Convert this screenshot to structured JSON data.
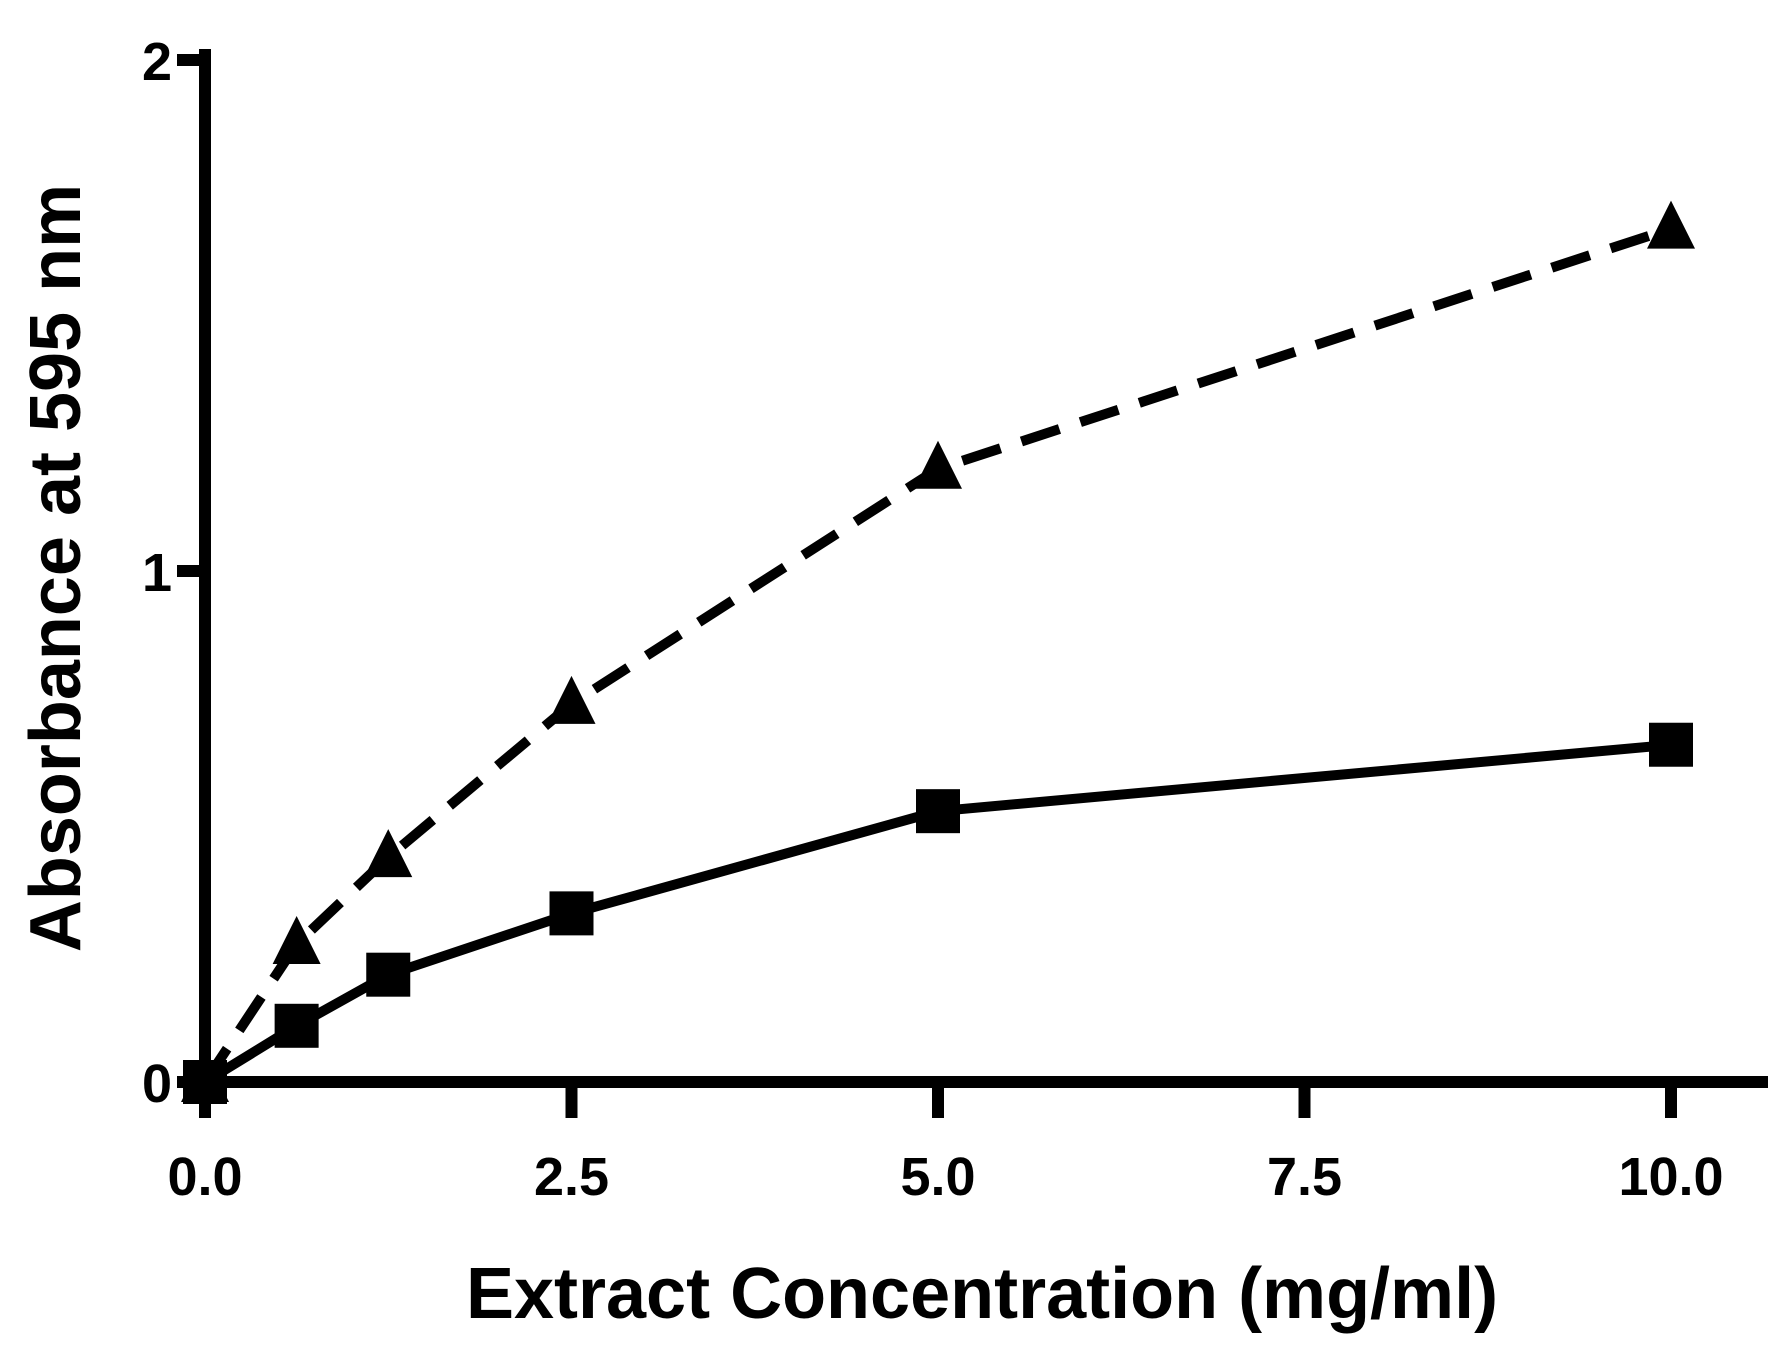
{
  "chart_data": {
    "type": "line",
    "title": "",
    "xlabel": "Extract Concentration (mg/ml)",
    "ylabel": "Absorbance at 595 nm",
    "xlim": [
      0,
      10.5
    ],
    "ylim": [
      0,
      2
    ],
    "x_ticks": [
      0,
      2.5,
      5,
      7.5,
      10
    ],
    "x_tick_labels": [
      "0.0",
      "2.5",
      "5.0",
      "7.5",
      "10.0"
    ],
    "y_ticks": [
      0,
      1,
      2
    ],
    "y_tick_labels": [
      "0",
      "1",
      "2"
    ],
    "grid": false,
    "legend": "none",
    "series": [
      {
        "marker": "triangle",
        "line_style": "dashed",
        "color": "#000000",
        "x": [
          0.0,
          0.625,
          1.25,
          2.5,
          5.0,
          10.0
        ],
        "y": [
          0.0,
          0.27,
          0.44,
          0.74,
          1.2,
          1.67
        ]
      },
      {
        "marker": "square",
        "line_style": "solid",
        "color": "#000000",
        "x": [
          0.0,
          0.625,
          1.25,
          2.5,
          5.0,
          10.0
        ],
        "y": [
          0.0,
          0.11,
          0.21,
          0.33,
          0.53,
          0.66
        ]
      }
    ]
  }
}
